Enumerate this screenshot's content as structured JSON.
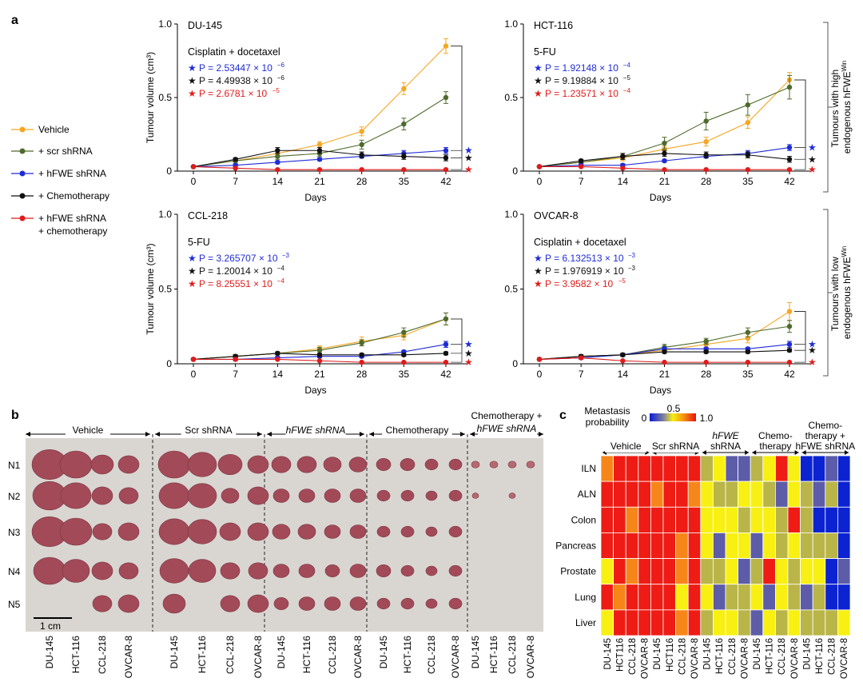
{
  "panel_labels": {
    "a": "a",
    "b": "b",
    "c": "c"
  },
  "legend": [
    {
      "label": "Vehicle",
      "color": "#f5a623"
    },
    {
      "label": "+ scr shRNA",
      "color": "#4e6b2c"
    },
    {
      "label": "+ hFWE shRNA",
      "color": "#1f2bd6"
    },
    {
      "label": "+ Chemotherapy",
      "color": "#111111"
    },
    {
      "label": "+ hFWE shRNA",
      "label2": "+ chemotherapy",
      "color": "#e01b1b"
    }
  ],
  "side_labels": {
    "high": {
      "line1": "Tumours with high",
      "line2": "endogenous hFWE",
      "sup": "Win"
    },
    "low": {
      "line1": "Tumours with low",
      "line2": "endogenous hFWE",
      "sup": "Win"
    }
  },
  "chart_data": [
    {
      "type": "line",
      "cell_line": "DU-145",
      "treatment": "Cisplatin + docetaxel",
      "xlabel": "Days",
      "ylabel": "Tumour volume (cm³)",
      "ylim": [
        0,
        1.0
      ],
      "yticks": [
        "0",
        "0.5",
        "1.0"
      ],
      "x": [
        0,
        7,
        14,
        21,
        28,
        35,
        42
      ],
      "pvalues": [
        {
          "text": "P = 2.53447 × 10",
          "exp": "−6",
          "color": "#1f2bd6"
        },
        {
          "text": "P = 4.49938 × 10",
          "exp": "−6",
          "color": "#111111"
        },
        {
          "text": "P = 2.6781 × 10",
          "exp": "−5",
          "color": "#e01b1b"
        }
      ],
      "series": [
        {
          "name": "Vehicle",
          "color": "#f5a623",
          "values": [
            0.03,
            0.07,
            0.12,
            0.18,
            0.27,
            0.56,
            0.85
          ],
          "err": [
            0,
            0.01,
            0.02,
            0.02,
            0.03,
            0.04,
            0.05
          ]
        },
        {
          "name": "+ scr shRNA",
          "color": "#4e6b2c",
          "values": [
            0.03,
            0.07,
            0.1,
            0.12,
            0.18,
            0.32,
            0.5
          ],
          "err": [
            0,
            0.01,
            0.02,
            0.02,
            0.03,
            0.04,
            0.04
          ]
        },
        {
          "name": "+ hFWE shRNA",
          "color": "#1f2bd6",
          "values": [
            0.03,
            0.04,
            0.06,
            0.08,
            0.1,
            0.12,
            0.14
          ],
          "err": [
            0,
            0.01,
            0.01,
            0.01,
            0.01,
            0.02,
            0.02
          ]
        },
        {
          "name": "+ Chemotherapy",
          "color": "#111111",
          "values": [
            0.03,
            0.08,
            0.14,
            0.14,
            0.11,
            0.1,
            0.09
          ],
          "err": [
            0,
            0.01,
            0.02,
            0.02,
            0.02,
            0.02,
            0.02
          ]
        },
        {
          "name": "+ hFWE shRNA + chemotherapy",
          "color": "#e01b1b",
          "values": [
            0.03,
            0.02,
            0.01,
            0.01,
            0.01,
            0.01,
            0.01
          ],
          "err": [
            0,
            0,
            0,
            0,
            0,
            0,
            0
          ]
        }
      ]
    },
    {
      "type": "line",
      "cell_line": "HCT-116",
      "treatment": "5-FU",
      "xlabel": "Days",
      "ylabel": "",
      "ylim": [
        0,
        1.0
      ],
      "yticks": [
        "0",
        "0.5",
        "1.0"
      ],
      "x": [
        0,
        7,
        14,
        21,
        28,
        35,
        42
      ],
      "pvalues": [
        {
          "text": "P = 1.92148 × 10",
          "exp": "−4",
          "color": "#1f2bd6"
        },
        {
          "text": "P = 9.19884 × 10",
          "exp": "−5",
          "color": "#111111"
        },
        {
          "text": "P = 1.23571 × 10",
          "exp": "−4",
          "color": "#e01b1b"
        }
      ],
      "series": [
        {
          "name": "Vehicle",
          "color": "#f5a623",
          "values": [
            0.03,
            0.06,
            0.09,
            0.15,
            0.2,
            0.33,
            0.62
          ],
          "err": [
            0,
            0.01,
            0.02,
            0.02,
            0.03,
            0.04,
            0.05
          ]
        },
        {
          "name": "+ scr shRNA",
          "color": "#4e6b2c",
          "values": [
            0.03,
            0.06,
            0.1,
            0.19,
            0.34,
            0.45,
            0.57
          ],
          "err": [
            0,
            0.01,
            0.02,
            0.04,
            0.06,
            0.07,
            0.08
          ]
        },
        {
          "name": "+ hFWE shRNA",
          "color": "#1f2bd6",
          "values": [
            0.03,
            0.04,
            0.04,
            0.07,
            0.1,
            0.12,
            0.16
          ],
          "err": [
            0,
            0.01,
            0.01,
            0.01,
            0.01,
            0.02,
            0.02
          ]
        },
        {
          "name": "+ Chemotherapy",
          "color": "#111111",
          "values": [
            0.03,
            0.07,
            0.1,
            0.12,
            0.11,
            0.11,
            0.08
          ],
          "err": [
            0,
            0.01,
            0.02,
            0.02,
            0.02,
            0.02,
            0.02
          ]
        },
        {
          "name": "+ hFWE shRNA + chemotherapy",
          "color": "#e01b1b",
          "values": [
            0.03,
            0.03,
            0.02,
            0.01,
            0.01,
            0.01,
            0.01
          ],
          "err": [
            0,
            0,
            0,
            0,
            0,
            0,
            0
          ]
        }
      ]
    },
    {
      "type": "line",
      "cell_line": "CCL-218",
      "treatment": "5-FU",
      "xlabel": "Days",
      "ylabel": "Tumour volume (cm³)",
      "ylim": [
        0,
        1.0
      ],
      "yticks": [
        "0",
        "0.5",
        "1.0"
      ],
      "x": [
        0,
        7,
        14,
        21,
        28,
        35,
        42
      ],
      "pvalues": [
        {
          "text": "P = 3.265707 × 10",
          "exp": "−3",
          "color": "#1f2bd6"
        },
        {
          "text": "P = 1.20014 × 10",
          "exp": "−4",
          "color": "#111111"
        },
        {
          "text": "P = 8.25551 × 10",
          "exp": "−4",
          "color": "#e01b1b"
        }
      ],
      "series": [
        {
          "name": "Vehicle",
          "color": "#f5a623",
          "values": [
            0.03,
            0.05,
            0.07,
            0.1,
            0.15,
            0.19,
            0.3
          ],
          "err": [
            0,
            0.01,
            0.01,
            0.02,
            0.03,
            0.03,
            0.04
          ]
        },
        {
          "name": "+ scr shRNA",
          "color": "#4e6b2c",
          "values": [
            0.03,
            0.05,
            0.07,
            0.09,
            0.14,
            0.21,
            0.3
          ],
          "err": [
            0,
            0.01,
            0.01,
            0.02,
            0.02,
            0.03,
            0.04
          ]
        },
        {
          "name": "+ hFWE shRNA",
          "color": "#1f2bd6",
          "values": [
            0.03,
            0.03,
            0.04,
            0.05,
            0.05,
            0.08,
            0.13
          ],
          "err": [
            0,
            0.01,
            0.01,
            0.01,
            0.01,
            0.01,
            0.02
          ]
        },
        {
          "name": "+ Chemotherapy",
          "color": "#111111",
          "values": [
            0.03,
            0.05,
            0.07,
            0.06,
            0.06,
            0.06,
            0.07
          ],
          "err": [
            0,
            0.01,
            0.01,
            0.01,
            0.01,
            0.01,
            0.01
          ]
        },
        {
          "name": "+ hFWE shRNA + chemotherapy",
          "color": "#e01b1b",
          "values": [
            0.03,
            0.03,
            0.03,
            0.02,
            0.01,
            0.01,
            0.01
          ],
          "err": [
            0,
            0,
            0,
            0,
            0,
            0,
            0
          ]
        }
      ]
    },
    {
      "type": "line",
      "cell_line": "OVCAR-8",
      "treatment": "Cisplatin + docetaxel",
      "xlabel": "Days",
      "ylabel": "",
      "ylim": [
        0,
        1.0
      ],
      "yticks": [
        "0",
        "0.5",
        "1.0"
      ],
      "x": [
        0,
        7,
        14,
        21,
        28,
        35,
        42
      ],
      "pvalues": [
        {
          "text": "P = 6.132513 × 10",
          "exp": "−3",
          "color": "#1f2bd6"
        },
        {
          "text": "P = 1.976919 × 10",
          "exp": "−3",
          "color": "#111111"
        },
        {
          "text": "P = 3.9582 × 10",
          "exp": "−5",
          "color": "#e01b1b"
        }
      ],
      "series": [
        {
          "name": "Vehicle",
          "color": "#f5a623",
          "values": [
            0.03,
            0.05,
            0.06,
            0.09,
            0.13,
            0.17,
            0.35
          ],
          "err": [
            0,
            0.01,
            0.01,
            0.02,
            0.02,
            0.03,
            0.06
          ]
        },
        {
          "name": "+ scr shRNA",
          "color": "#4e6b2c",
          "values": [
            0.03,
            0.05,
            0.06,
            0.11,
            0.15,
            0.21,
            0.25
          ],
          "err": [
            0,
            0.01,
            0.01,
            0.02,
            0.02,
            0.03,
            0.04
          ]
        },
        {
          "name": "+ hFWE shRNA",
          "color": "#1f2bd6",
          "values": [
            0.03,
            0.04,
            0.06,
            0.1,
            0.1,
            0.1,
            0.13
          ],
          "err": [
            0,
            0.01,
            0.01,
            0.01,
            0.01,
            0.01,
            0.02
          ]
        },
        {
          "name": "+ Chemotherapy",
          "color": "#111111",
          "values": [
            0.03,
            0.05,
            0.06,
            0.08,
            0.08,
            0.08,
            0.09
          ],
          "err": [
            0,
            0.01,
            0.01,
            0.01,
            0.01,
            0.01,
            0.01
          ]
        },
        {
          "name": "+ hFWE shRNA + chemotherapy",
          "color": "#e01b1b",
          "values": [
            0.03,
            0.04,
            0.02,
            0.01,
            0.01,
            0.01,
            0.01
          ],
          "err": [
            0,
            0,
            0,
            0,
            0,
            0,
            0
          ]
        }
      ]
    },
    {
      "type": "heatmap",
      "title": "Metastasis probability",
      "colorbar_ticks": [
        "0",
        "0.5",
        "1.0"
      ],
      "groups": [
        {
          "label": "Vehicle",
          "lines": [
            "Vehicle"
          ]
        },
        {
          "label": "Scr shRNA",
          "lines": [
            "Scr shRNA"
          ]
        },
        {
          "label": "hFWE shRNA",
          "lines": [
            "hFWE",
            "shRNA"
          ],
          "italic_first": true
        },
        {
          "label": "Chemotherapy",
          "lines": [
            "Chemo-",
            "therapy"
          ]
        },
        {
          "label": "Chemotherapy + hFWE shRNA",
          "lines": [
            "Chemo-",
            "therapy +",
            "hFWE shRNA"
          ],
          "italic_last_prefix": true
        }
      ],
      "columns": [
        "DU-145",
        "HCT116",
        "CCL-218",
        "OVCAR-8",
        "DU-145",
        "HCT116",
        "CCL-218",
        "OVCAR-8",
        "DU-145",
        "HCT-116",
        "CCL-218",
        "OVCAR-8",
        "DU-145",
        "HCT-116",
        "CCL-218",
        "OVCAR-8",
        "DU-145",
        "HCT-116",
        "CCL-218",
        "OVCAR-8"
      ],
      "rows": [
        "ILN",
        "ALN",
        "Colon",
        "Pancreas",
        "Prostate",
        "Lung",
        "Liver"
      ],
      "values": [
        [
          0.8,
          0.9,
          0.9,
          0.9,
          0.85,
          0.9,
          0.9,
          0.9,
          0.45,
          0.5,
          0.15,
          0.15,
          0.4,
          0.5,
          0.85,
          0.5,
          0.05,
          0.05,
          0.15,
          0.05
        ],
        [
          0.9,
          0.9,
          0.85,
          0.9,
          0.7,
          0.85,
          0.85,
          0.8,
          0.5,
          0.4,
          0.4,
          0.5,
          0.5,
          0.4,
          0.15,
          0.5,
          0.4,
          0.15,
          0.4,
          0.05
        ],
        [
          0.9,
          0.9,
          0.8,
          0.9,
          0.9,
          0.9,
          0.85,
          0.9,
          0.5,
          0.5,
          0.5,
          0.4,
          0.5,
          0.5,
          0.4,
          0.9,
          0.4,
          0.05,
          0.05,
          0.05
        ],
        [
          0.85,
          0.9,
          0.9,
          0.9,
          0.85,
          0.85,
          0.7,
          0.9,
          0.5,
          0.15,
          0.5,
          0.5,
          0.15,
          0.5,
          0.4,
          0.5,
          0.4,
          0.4,
          0.4,
          0.05
        ],
        [
          0.5,
          0.9,
          0.8,
          0.9,
          0.9,
          0.9,
          0.8,
          0.85,
          0.4,
          0.4,
          0.5,
          0.15,
          0.4,
          0.9,
          0.5,
          0.4,
          0.5,
          0.5,
          0.05,
          0.15
        ],
        [
          0.9,
          0.8,
          0.9,
          0.85,
          0.9,
          0.9,
          0.5,
          0.9,
          0.5,
          0.15,
          0.4,
          0.4,
          0.5,
          0.15,
          0.5,
          0.4,
          0.15,
          0.4,
          0.05,
          0.05
        ],
        [
          0.5,
          0.9,
          0.9,
          0.9,
          0.9,
          0.9,
          0.8,
          0.9,
          0.4,
          0.5,
          0.5,
          0.4,
          0.15,
          0.5,
          0.4,
          0.5,
          0.4,
          0.4,
          0.4,
          0.5
        ]
      ]
    }
  ],
  "photo": {
    "groups": [
      "Vehicle",
      "Scr shRNA",
      "hFWE shRNA",
      "Chemotherapy",
      "Chemotherapy +",
      "hFWE shRNA"
    ],
    "rows": [
      "N1",
      "N2",
      "N3",
      "N4",
      "N5"
    ],
    "columns": [
      "DU-145",
      "HCT-116",
      "CCL-218",
      "OVCAR-8",
      "DU-145",
      "HCT-116",
      "CCL-218",
      "OVCAR-8",
      "DU-145",
      "HCT-116",
      "CCL-218",
      "OVCAR-8",
      "DU-145",
      "HCT-116",
      "CCL-218",
      "OVCAR-8",
      "DU-145",
      "HCT-116",
      "CCL-218",
      "OVCAR-8"
    ],
    "scale": "1 cm"
  }
}
